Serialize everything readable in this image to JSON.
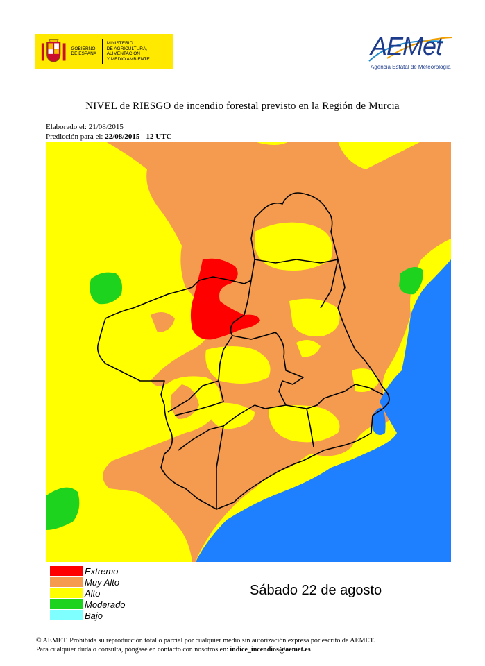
{
  "header": {
    "gov_logo": {
      "line1": "GOBIERNO\nDE ESPAÑA",
      "line2": "MINISTERIO\nDE AGRICULTURA, ALIMENTACIÓN\nY MEDIO AMBIENTE",
      "bg_color": "#ffe900"
    },
    "aemet_logo": {
      "wordmark": "AEMet",
      "subtitle": "Agencia Estatal de Meteorología",
      "color": "#1d3b8c"
    }
  },
  "title": "NIVEL de RIESGO de incendio forestal previsto en la Región de Murcia",
  "meta": {
    "elaborated_label": "Elaborado el:",
    "elaborated_date": "21/08/2015",
    "prediction_label": "Predicción para el:",
    "prediction_value": "22/08/2015 - 12 UTC"
  },
  "map": {
    "colors": {
      "extremo": "#ff0000",
      "muy_alto": "#f59b4f",
      "alto": "#ffff00",
      "moderado": "#1ed31e",
      "bajo": "#7fffff",
      "sea": "#1e7fff",
      "border": "#000000"
    }
  },
  "legend": [
    {
      "label": "Extremo",
      "color": "#ff0000"
    },
    {
      "label": "Muy Alto",
      "color": "#f59b4f"
    },
    {
      "label": "Alto",
      "color": "#ffff00"
    },
    {
      "label": "Moderado",
      "color": "#1ed31e"
    },
    {
      "label": "Bajo",
      "color": "#7fffff"
    }
  ],
  "date_label": "Sábado 22 de agosto",
  "footer": {
    "copyright": "© AEMET. Prohibida su reproducción total o parcial por cualquier medio sin autorización expresa por escrito de AEMET.",
    "contact_prefix": "Para cualquier duda o consulta, póngase en contacto con nosotros en:",
    "contact_email": "indice_incendios@aemet.es"
  }
}
